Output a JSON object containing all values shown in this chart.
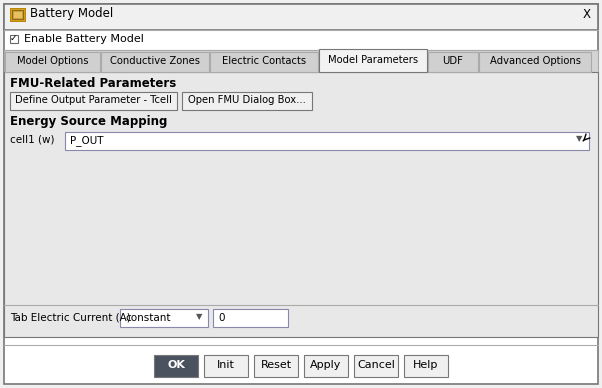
{
  "title": "Battery Model",
  "bg_color": "#f0f0f0",
  "dialog_bg": "#ffffff",
  "tab_active_bg": "#f2f2f2",
  "tab_inactive_bg": "#d8d8d8",
  "tabs": [
    "Model Options",
    "Conductive Zones",
    "Electric Contacts",
    "Model Parameters",
    "UDF",
    "Advanced Options"
  ],
  "tab_widths": [
    95,
    108,
    108,
    108,
    50,
    112
  ],
  "active_tab": 3,
  "checkbox_label": "Enable Battery Model",
  "section_title": "FMU-Related Parameters",
  "btn1": "Define Output Parameter - Tcell",
  "btn2": "Open FMU Dialog Box...",
  "subsection": "Energy Source Mapping",
  "dropdown_label": "cell1 (w)",
  "dropdown_value": "P_OUT",
  "bottom_label": "Tab Electric Current (A)",
  "bottom_dropdown": "constant",
  "bottom_input": "0",
  "footer_buttons": [
    "OK",
    "Init",
    "Reset",
    "Apply",
    "Cancel",
    "Help"
  ],
  "ok_bg": "#4a5260",
  "ok_fg": "#ffffff",
  "border_color": "#aaaaaa",
  "dark_border": "#777777",
  "text_color": "#000000",
  "title_bar_bg": "#f0f0f0",
  "content_bg": "#e8e8e8",
  "btn_bg": "#f0f0f0",
  "input_bg": "#ffffff"
}
